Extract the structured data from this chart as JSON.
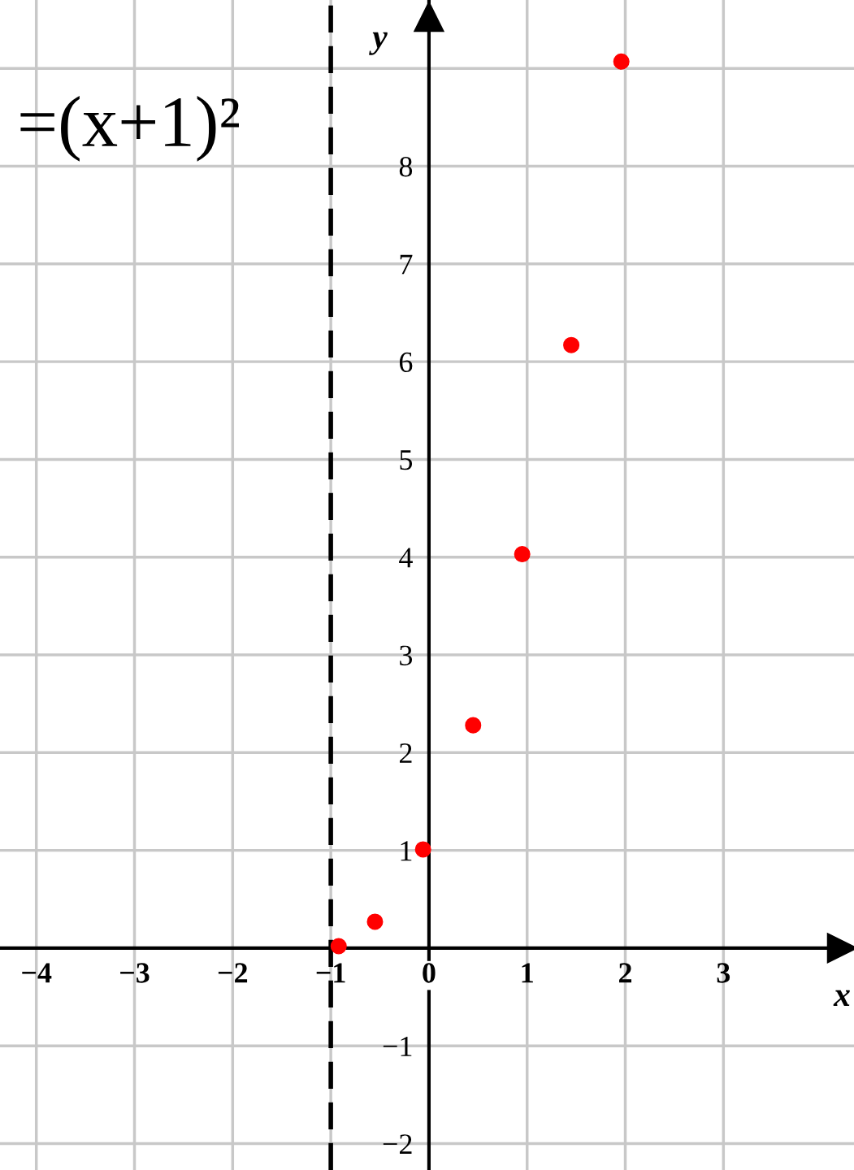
{
  "chart_data": {
    "type": "scatter",
    "xlabel": "x",
    "ylabel": "y",
    "annotations": [
      "=(x+1)²"
    ],
    "x": [
      -0.92,
      -0.55,
      -0.06,
      0.45,
      0.95,
      1.45,
      1.96
    ],
    "series": [
      {
        "color": "#ff0000",
        "values": [
          0.02,
          0.27,
          1.01,
          2.28,
          4.03,
          6.17,
          9.07
        ]
      }
    ],
    "marker": "circle",
    "xlim": [
      -4.37,
      4.33
    ],
    "ylim": [
      -2.27,
      9.7
    ],
    "xticks": [
      {
        "value": -4,
        "label": "−4"
      },
      {
        "value": -3,
        "label": "−3"
      },
      {
        "value": -2,
        "label": "−2"
      },
      {
        "value": -1,
        "label": "−1"
      },
      {
        "value": 0,
        "label": "0"
      },
      1,
      2,
      3
    ],
    "yticks": [
      {
        "value": -2,
        "label": "−2"
      },
      {
        "value": -1,
        "label": "−1"
      },
      1,
      2,
      3,
      4,
      5,
      6,
      7,
      8,
      {
        "value": 9,
        "label": null
      }
    ],
    "ref_lines": [
      {
        "axis": "x",
        "value": -1,
        "label": null,
        "color": "#000000",
        "line_style": "dashed"
      }
    ],
    "grid": true
  }
}
